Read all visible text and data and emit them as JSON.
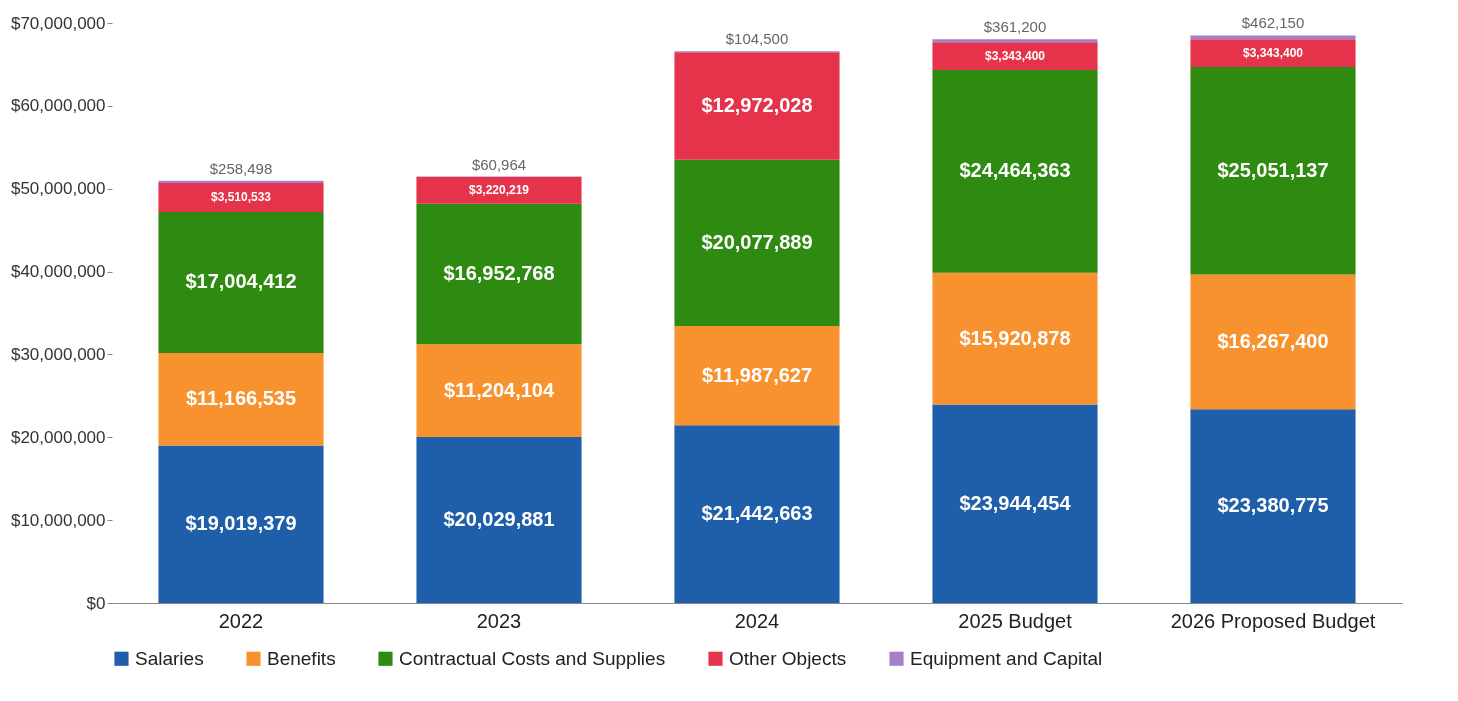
{
  "chart_data": {
    "type": "bar",
    "stacked": true,
    "categories": [
      "2022",
      "2023",
      "2024",
      "2025 Budget",
      "2026 Proposed Budget"
    ],
    "series": [
      {
        "name": "Salaries",
        "color": "#1f5ea8",
        "values": [
          19019379,
          20029881,
          21442663,
          23944454,
          23380775
        ],
        "value_labels": [
          "$19,019,379",
          "$20,029,881",
          "$21,442,663",
          "$23,944,454",
          "$23,380,775"
        ]
      },
      {
        "name": "Benefits",
        "color": "#f7922e",
        "values": [
          11166535,
          11204104,
          11987627,
          15920878,
          16267400
        ],
        "value_labels": [
          "$11,166,535",
          "$11,204,104",
          "$11,987,627",
          "$15,920,878",
          "$16,267,400"
        ]
      },
      {
        "name": "Contractual Costs and Supplies",
        "color": "#2e8a10",
        "values": [
          17004412,
          16952768,
          20077889,
          24464363,
          25051137
        ],
        "value_labels": [
          "$17,004,412",
          "$16,952,768",
          "$20,077,889",
          "$24,464,363",
          "$25,051,137"
        ]
      },
      {
        "name": "Other Objects",
        "color": "#e5334b",
        "values": [
          3510533,
          3220219,
          12972028,
          3343400,
          3343400
        ],
        "value_labels": [
          "$3,510,533",
          "$3,220,219",
          "$12,972,028",
          "$3,343,400",
          "$3,343,400"
        ]
      },
      {
        "name": "Equipment and Capital",
        "color": "#a67fc9",
        "values": [
          258498,
          60964,
          104500,
          361200,
          462150
        ],
        "value_labels": [
          "$258,498",
          "$60,964",
          "$104,500",
          "$361,200",
          "$462,150"
        ]
      }
    ],
    "ylim": [
      0,
      70000000
    ],
    "yticks": [
      {
        "value": 0,
        "label": "$0"
      },
      {
        "value": 10000000,
        "label": "$10,000,000"
      },
      {
        "value": 20000000,
        "label": "$20,000,000"
      },
      {
        "value": 30000000,
        "label": "$30,000,000"
      },
      {
        "value": 40000000,
        "label": "$40,000,000"
      },
      {
        "value": 50000000,
        "label": "$50,000,000"
      },
      {
        "value": 60000000,
        "label": "$60,000,000"
      },
      {
        "value": 70000000,
        "label": "$70,000,000"
      }
    ],
    "grid": false,
    "legend": "bottom"
  }
}
